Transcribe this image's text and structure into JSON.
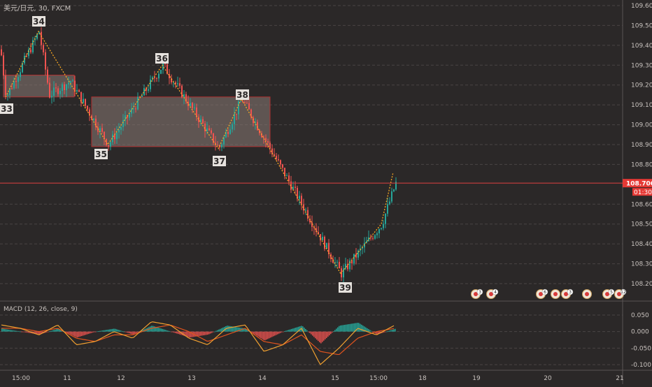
{
  "symbol_title": "美元/日元, 30, FXCM",
  "macd_title": "MACD (12, 26, close, 9)",
  "price_axis_ticks": [
    "109.600",
    "109.500",
    "109.400",
    "109.300",
    "109.200",
    "109.100",
    "109.000",
    "108.900",
    "108.800",
    "108.600",
    "108.500",
    "108.400",
    "108.300",
    "108.200"
  ],
  "last_price": "108.706",
  "countdown": "01:30",
  "macd_axis_ticks": [
    "0.050",
    "0.000",
    "-0.050",
    "-0.100"
  ],
  "time_axis_ticks": [
    "15:00",
    "11",
    "12",
    "13",
    "14",
    "15",
    "15:00",
    "18",
    "19",
    "20",
    "21"
  ],
  "wave_labels": [
    "33",
    "34",
    "35",
    "36",
    "37",
    "38",
    "39"
  ],
  "event_badges": [
    "3",
    "4",
    "6",
    "3",
    "5",
    "12"
  ],
  "colors": {
    "background": "#2b2828",
    "up": "#26a69a",
    "down": "#ef5350",
    "macd_line": "#f0a030",
    "signal_line": "#e0531e",
    "zigzag": "#f5a623",
    "box_fill": "#8a7a74",
    "box_border": "#b03030",
    "last_price_line": "#e04040"
  },
  "chart_data": [
    {
      "type": "line",
      "title": "美元/日元, 30, FXCM",
      "ylim": [
        108.15,
        109.63
      ],
      "x": [
        "33",
        "34",
        "35",
        "36",
        "37",
        "38",
        "39",
        "last"
      ],
      "series": [
        {
          "values": [
            109.14,
            109.47,
            108.9,
            109.3,
            108.88,
            109.13,
            108.25,
            108.706
          ]
        }
      ],
      "boxes": [
        {
          "y_top": 109.25,
          "y_bottom": 109.14
        },
        {
          "y_top": 109.14,
          "y_bottom": 108.89
        }
      ],
      "last_value": 108.706
    },
    {
      "type": "line",
      "title": "MACD (12, 26, close, 9)",
      "ylim": [
        -0.11,
        0.06
      ],
      "series": [
        {
          "name": "MACD",
          "values": [
            0.02,
            0.01,
            -0.01,
            0.02,
            -0.04,
            -0.03,
            0.0,
            -0.02,
            0.03,
            0.02,
            -0.02,
            -0.04,
            0.01,
            0.02,
            -0.06,
            -0.04,
            0.01,
            -0.1,
            -0.05,
            0.01,
            -0.01,
            0.02
          ]
        },
        {
          "name": "Signal",
          "values": [
            0.01,
            0.01,
            0.0,
            0.01,
            -0.02,
            -0.03,
            -0.01,
            -0.01,
            0.01,
            0.02,
            0.0,
            -0.03,
            -0.01,
            0.01,
            -0.03,
            -0.04,
            -0.01,
            -0.06,
            -0.07,
            -0.02,
            0.0,
            0.01
          ]
        }
      ]
    }
  ]
}
